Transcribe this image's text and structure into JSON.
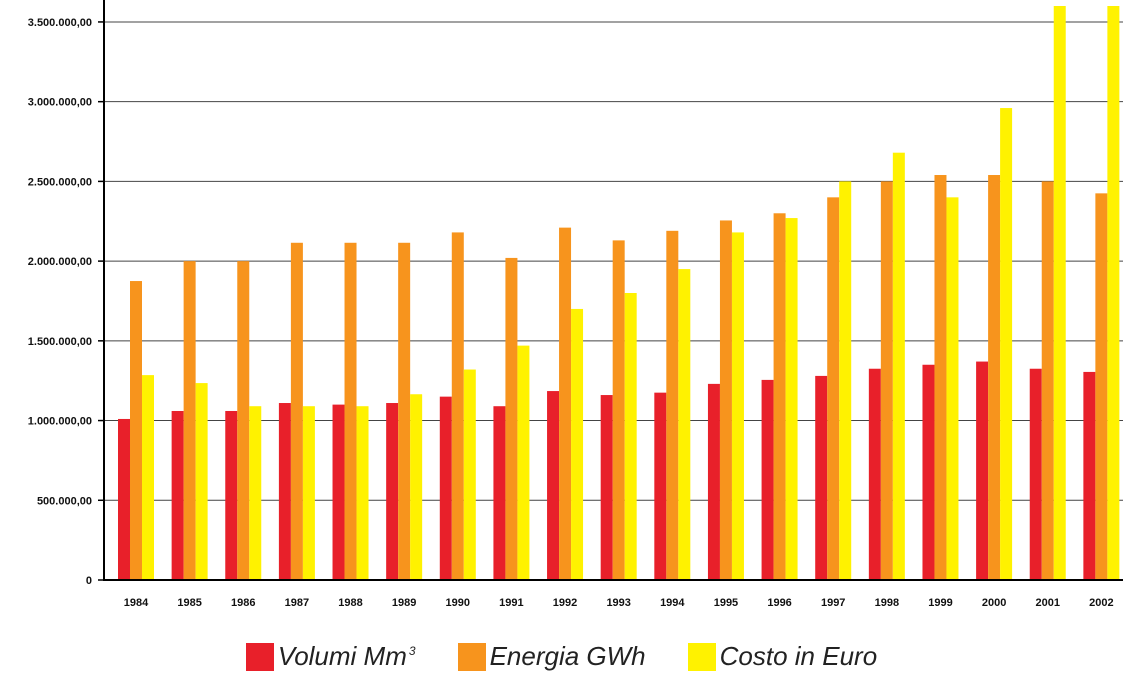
{
  "chart_data": {
    "type": "bar",
    "categories": [
      "1984",
      "1985",
      "1986",
      "1987",
      "1988",
      "1989",
      "1990",
      "1991",
      "1992",
      "1993",
      "1994",
      "1995",
      "1996",
      "1997",
      "1998",
      "1999",
      "2000",
      "2001",
      "2002"
    ],
    "series": [
      {
        "name": "Volumi Mm",
        "unit_superscript": "3",
        "color": "#e8202a",
        "values": [
          1010000,
          1060000,
          1060000,
          1110000,
          1100000,
          1110000,
          1150000,
          1090000,
          1185000,
          1160000,
          1175000,
          1230000,
          1255000,
          1280000,
          1325000,
          1350000,
          1370000,
          1325000,
          1305000
        ]
      },
      {
        "name": "Energia GWh",
        "color": "#f7941d",
        "values": [
          1875000,
          2000000,
          2000000,
          2115000,
          2115000,
          2115000,
          2180000,
          2020000,
          2210000,
          2130000,
          2190000,
          2255000,
          2300000,
          2400000,
          2500000,
          2540000,
          2540000,
          2500000,
          2425000
        ]
      },
      {
        "name": "Costo in Euro",
        "color": "#fff200",
        "values": [
          1285000,
          1235000,
          1090000,
          1090000,
          1090000,
          1165000,
          1320000,
          1470000,
          1700000,
          1800000,
          1950000,
          2180000,
          2270000,
          2500000,
          2680000,
          2400000,
          2960000,
          3600000,
          3600000
        ]
      }
    ],
    "y_ticks": [
      "0",
      "500.000,00",
      "1.000.000,00",
      "1.500.000,00",
      "2.000.000,00",
      "2.500.000,00",
      "3.000.000,00",
      "3.500.000,00"
    ],
    "y_tick_values": [
      0,
      500000,
      1000000,
      1500000,
      2000000,
      2500000,
      3000000,
      3500000
    ],
    "ylim": [
      0,
      3600000
    ],
    "grid": true,
    "legend_position": "bottom-center",
    "title": "",
    "xlabel": "",
    "ylabel": ""
  }
}
